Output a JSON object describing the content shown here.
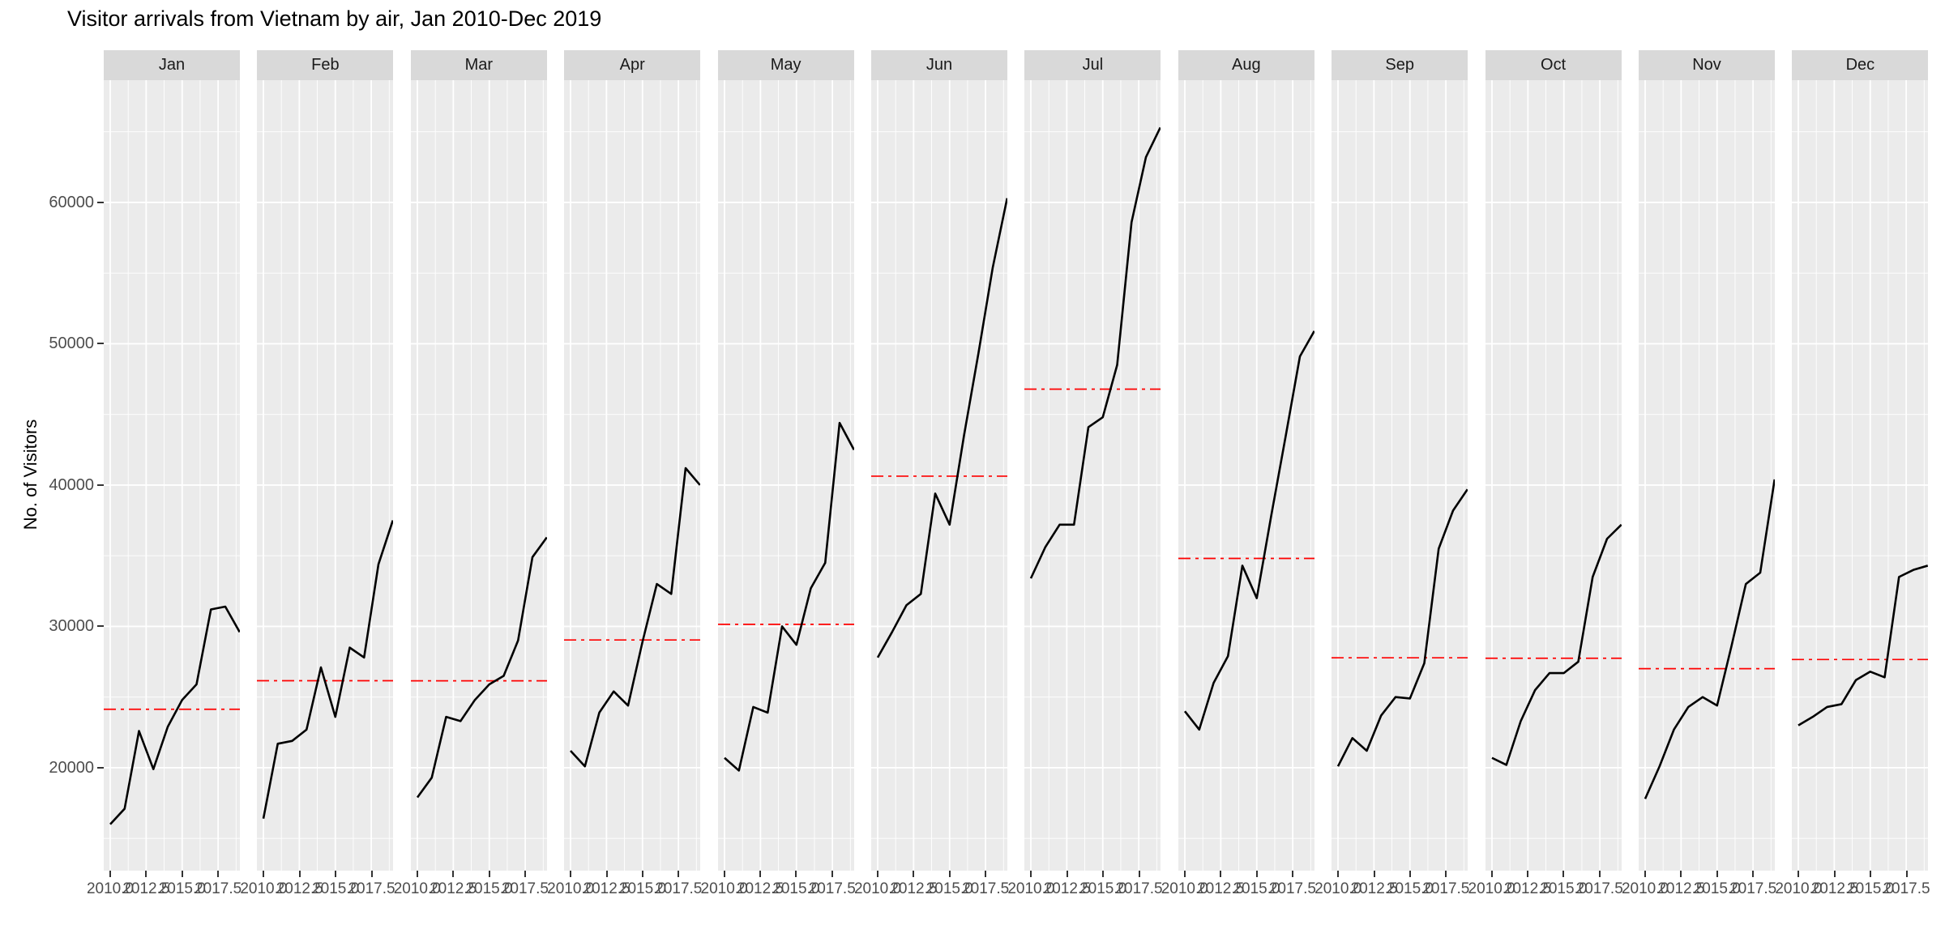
{
  "title": "Visitor arrivals from Vietnam by air, Jan 2010-Dec 2019",
  "y_axis": {
    "label": "No. of Visitors",
    "tick_labels": [
      "20000",
      "30000",
      "40000",
      "50000",
      "60000"
    ],
    "tick_values": [
      20000,
      30000,
      40000,
      50000,
      60000
    ]
  },
  "x_axis": {
    "tick_labels": [
      "2010.0",
      "2012.5",
      "2015.0",
      "2017.5"
    ],
    "tick_values": [
      2010,
      2012.5,
      2015,
      2017.5
    ]
  },
  "colors": {
    "panel_bg": "#EBEBEB",
    "strip_bg": "#D9D9D9",
    "grid": "#FFFFFF",
    "line": "#000000",
    "mean_line": "#FF0000",
    "axis_text": "#4D4D4D",
    "strip_text": "#1A1A1A",
    "title_text": "#000000"
  },
  "chart_data": {
    "type": "line",
    "title": "Visitor arrivals from Vietnam by air, Jan 2010-Dec 2019",
    "xlabel": "",
    "ylabel": "No. of Visitors",
    "faceted_by": "month",
    "x": [
      2010,
      2011,
      2012,
      2013,
      2014,
      2015,
      2016,
      2017,
      2018,
      2019
    ],
    "xlim": [
      2009.55,
      2019.45
    ],
    "ylim": [
      12720,
      68650
    ],
    "grid": true,
    "legend": "none",
    "mean_line": {
      "meaning": "mean of month across years",
      "color": "#FF0000",
      "style": "dash-dot"
    },
    "facets": [
      {
        "label": "Jan",
        "values": [
          16000,
          17100,
          22600,
          19900,
          22900,
          24800,
          25900,
          31200,
          31400,
          29600
        ],
        "mean": 24140
      },
      {
        "label": "Feb",
        "values": [
          16400,
          21700,
          21900,
          22700,
          27100,
          23600,
          28500,
          27800,
          34400,
          37500
        ],
        "mean": 26160
      },
      {
        "label": "Mar",
        "values": [
          17900,
          19300,
          23600,
          23300,
          24800,
          25900,
          26500,
          29000,
          34900,
          36300
        ],
        "mean": 26150
      },
      {
        "label": "Apr",
        "values": [
          21200,
          20100,
          23900,
          25400,
          24400,
          28900,
          33000,
          32300,
          41200,
          40000
        ],
        "mean": 29040
      },
      {
        "label": "May",
        "values": [
          20700,
          19800,
          24300,
          23900,
          30000,
          28700,
          32700,
          34500,
          44400,
          42500
        ],
        "mean": 30150
      },
      {
        "label": "Jun",
        "values": [
          27800,
          29600,
          31500,
          32300,
          39400,
          37200,
          43500,
          49300,
          55400,
          60300
        ],
        "mean": 40630
      },
      {
        "label": "Jul",
        "values": [
          33400,
          35600,
          37200,
          37200,
          44100,
          44800,
          48500,
          58600,
          63200,
          65300
        ],
        "mean": 46790
      },
      {
        "label": "Aug",
        "values": [
          24000,
          22700,
          26000,
          27900,
          34300,
          32000,
          37800,
          43400,
          49100,
          50900
        ],
        "mean": 34810
      },
      {
        "label": "Sep",
        "values": [
          20100,
          22100,
          21200,
          23700,
          25000,
          24900,
          27400,
          35500,
          38200,
          39700
        ],
        "mean": 27780
      },
      {
        "label": "Oct",
        "values": [
          20700,
          20200,
          23300,
          25500,
          26700,
          26700,
          27500,
          33500,
          36200,
          37200
        ],
        "mean": 27750
      },
      {
        "label": "Nov",
        "values": [
          17800,
          20100,
          22700,
          24300,
          25000,
          24400,
          28600,
          33000,
          33800,
          40400
        ],
        "mean": 27010
      },
      {
        "label": "Dec",
        "values": [
          23000,
          23600,
          24300,
          24500,
          26200,
          26800,
          26400,
          33500,
          34000,
          34300
        ],
        "mean": 27660
      }
    ]
  }
}
